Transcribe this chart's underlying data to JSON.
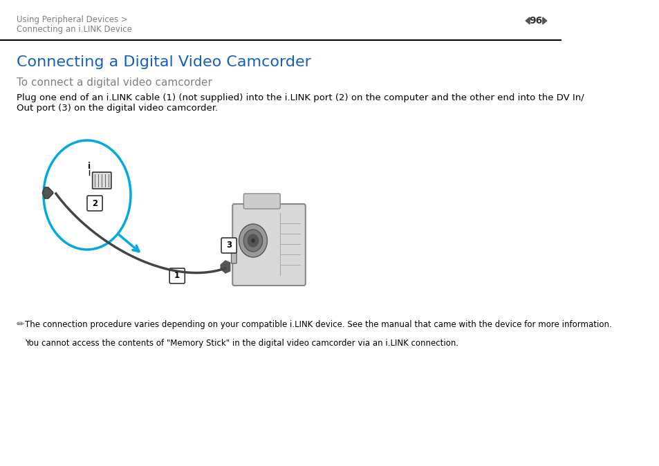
{
  "bg_color": "#ffffff",
  "header_text1": "Using Peripheral Devices >",
  "header_text2": "Connecting an i.LINK Device",
  "page_num": "96",
  "title": "Connecting a Digital Video Camcorder",
  "subtitle": "To connect a digital video camcorder",
  "body_text": "Plug one end of an i.LINK cable (1) (not supplied) into the i.LINK port (2) on the computer and the other end into the DV In/\nOut port (3) on the digital video camcorder.",
  "note_text1": "The connection procedure varies depending on your compatible i.LINK device. See the manual that came with the device for more information.",
  "note_text2": "You cannot access the contents of \"Memory Stick\" in the digital video camcorder via an i.LINK connection.",
  "title_color": "#1560bd",
  "subtitle_color": "#808080",
  "header_color": "#808080",
  "body_color": "#000000",
  "note_color": "#000000",
  "line_color": "#000000",
  "cyan_color": "#00aadd"
}
